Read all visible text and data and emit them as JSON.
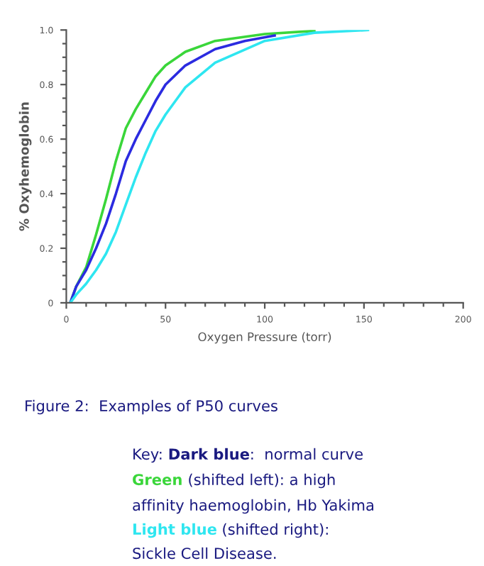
{
  "chart_data": {
    "type": "line",
    "xlabel": "Oxygen Pressure (torr)",
    "ylabel": "% Oxyhemoglobin",
    "xlim": [
      0,
      200
    ],
    "xticks": [
      0,
      50,
      100,
      150,
      200
    ],
    "ylim": [
      0,
      1.0
    ],
    "yticks": [
      0,
      {
        "value": 0.2,
        "label": "0.2"
      },
      {
        "value": 0.4,
        "label": "0.4"
      },
      {
        "value": 0.6,
        "label": "0.6"
      },
      {
        "value": 0.8,
        "label": "0.8"
      },
      {
        "value": 1.0,
        "label": "1.0"
      }
    ],
    "marker": "none",
    "line_style": "solid",
    "series": [
      {
        "color": "#3ad63a",
        "x": [
          2,
          5,
          10,
          15,
          20,
          25,
          30,
          35,
          40,
          45,
          50,
          60,
          75,
          100,
          125
        ],
        "values": [
          0,
          0.06,
          0.13,
          0.25,
          0.38,
          0.52,
          0.64,
          0.71,
          0.77,
          0.83,
          0.87,
          0.92,
          0.96,
          0.985,
          0.997
        ]
      },
      {
        "color": "#2b2be0",
        "x": [
          2,
          5,
          10,
          15,
          20,
          25,
          30,
          35,
          40,
          45,
          50,
          60,
          75,
          90,
          105
        ],
        "values": [
          0,
          0.06,
          0.12,
          0.2,
          0.29,
          0.4,
          0.52,
          0.6,
          0.67,
          0.74,
          0.8,
          0.87,
          0.93,
          0.96,
          0.98
        ]
      },
      {
        "color": "#2ee6f0",
        "x": [
          2,
          5,
          10,
          15,
          20,
          25,
          30,
          35,
          40,
          45,
          50,
          60,
          75,
          100,
          125,
          152
        ],
        "values": [
          0,
          0.03,
          0.07,
          0.12,
          0.18,
          0.26,
          0.36,
          0.46,
          0.55,
          0.63,
          0.69,
          0.79,
          0.88,
          0.96,
          0.99,
          1.0
        ]
      }
    ],
    "annotations": [
      "Figure 2:  Examples of P50 curves",
      "Key: ",
      "Dark blue",
      ":  normal curve",
      "Green",
      " (shifted left): a high",
      "affinity haemoglobin, Hb Yakima",
      "Light blue",
      " (shifted right):",
      "Sickle Cell Disease."
    ]
  }
}
